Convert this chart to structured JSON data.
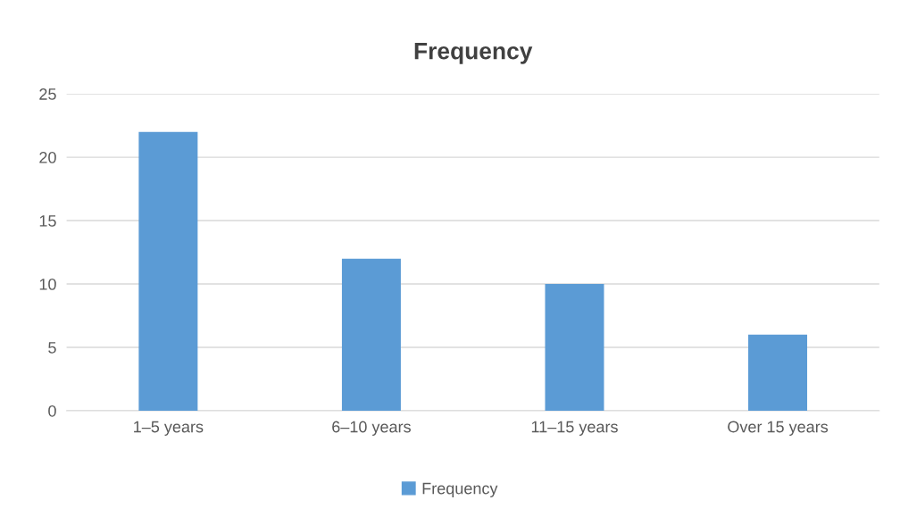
{
  "chart_data": {
    "type": "bar",
    "title": "Frequency",
    "categories": [
      "1–5 years",
      "6–10 years",
      "11–15 years",
      "Over 15 years"
    ],
    "series": [
      {
        "name": "Frequency",
        "color": "#5b9bd5",
        "values": [
          22,
          12,
          10,
          6
        ]
      }
    ],
    "ylim": [
      0,
      25
    ],
    "yticks": [
      0,
      5,
      10,
      15,
      20,
      25
    ],
    "grid": "y",
    "legend": "bottom"
  }
}
